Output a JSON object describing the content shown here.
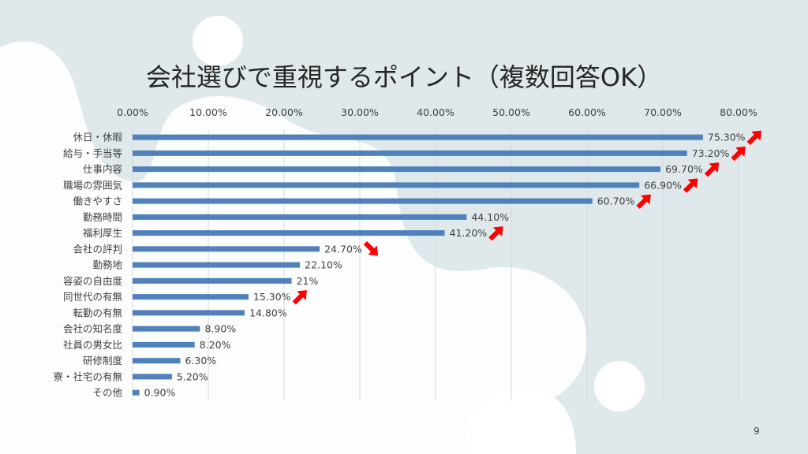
{
  "slide": {
    "page_number": "9"
  },
  "colors": {
    "bar": "#4f81bd",
    "arrow": "#ff0000",
    "text": "#404040",
    "grid": "#d9d9d9"
  },
  "chart_data": {
    "type": "bar",
    "orientation": "horizontal",
    "title": "会社選びで重視するポイント（複数回答OK）",
    "xlabel": "",
    "ylabel": "",
    "xlim": [
      0,
      80
    ],
    "x_ticks": [
      "0.00%",
      "10.00%",
      "20.00%",
      "30.00%",
      "40.00%",
      "50.00%",
      "60.00%",
      "70.00%",
      "80.00%"
    ],
    "grid": true,
    "categories": [
      "休日・休暇",
      "給与・手当等",
      "仕事内容",
      "職場の雰囲気",
      "働きやすさ",
      "勤務時間",
      "福利厚生",
      "会社の評判",
      "勤務地",
      "容姿の自由度",
      "同世代の有無",
      "転勤の有無",
      "会社の知名度",
      "社員の男女比",
      "研修制度",
      "寮・社宅の有無",
      "その他"
    ],
    "values": [
      75.3,
      73.2,
      69.7,
      66.9,
      60.7,
      44.1,
      41.2,
      24.7,
      22.1,
      21,
      15.3,
      14.8,
      8.9,
      8.2,
      6.3,
      5.2,
      0.9
    ],
    "data_labels": [
      "75.30%",
      "73.20%",
      "69.70%",
      "66.90%",
      "60.70%",
      "44.10%",
      "41.20%",
      "24.70%",
      "22.10%",
      "21%",
      "15.30%",
      "14.80%",
      "8.90%",
      "8.20%",
      "6.30%",
      "5.20%",
      "0.90%"
    ],
    "annotations": [
      "up",
      "up",
      "up",
      "up",
      "up",
      "none",
      "up",
      "down",
      "none",
      "none",
      "up",
      "none",
      "none",
      "none",
      "none",
      "none",
      "none"
    ]
  }
}
